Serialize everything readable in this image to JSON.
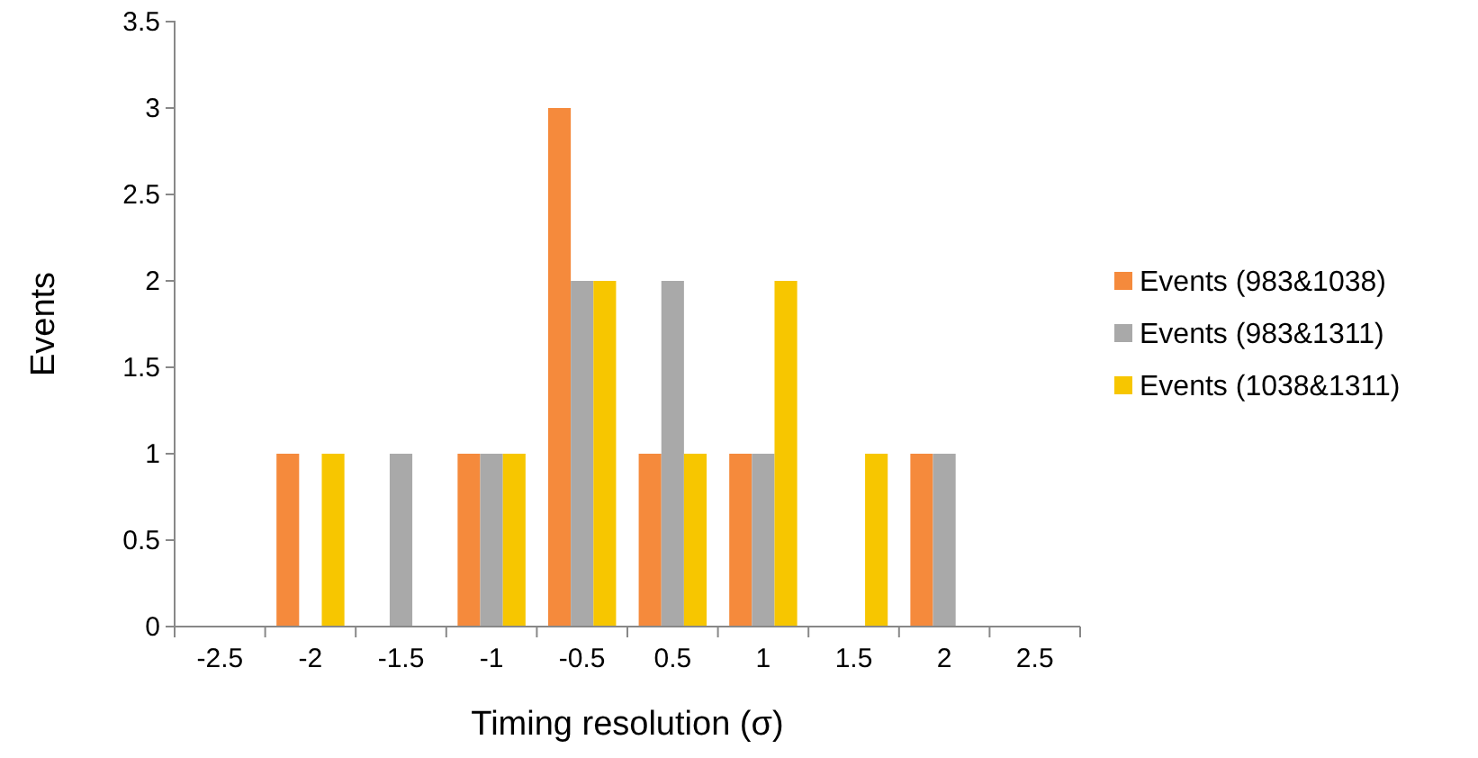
{
  "chart_data": {
    "type": "bar",
    "xlabel": "Timing resolution (σ)",
    "ylabel": "Events",
    "categories": [
      "-2.5",
      "-2",
      "-1.5",
      "-1",
      "-0.5",
      "0.5",
      "1",
      "1.5",
      "2",
      "2.5"
    ],
    "series": [
      {
        "name": "Events (983&1038)",
        "color": "#f58a3c",
        "values": [
          0,
          1,
          0,
          1,
          3,
          1,
          1,
          0,
          1,
          0
        ]
      },
      {
        "name": "Events (983&1311)",
        "color": "#a9a9a9",
        "values": [
          0,
          0,
          1,
          1,
          2,
          2,
          1,
          0,
          1,
          0
        ]
      },
      {
        "name": "Events (1038&1311)",
        "color": "#f7c600",
        "values": [
          0,
          1,
          0,
          1,
          2,
          1,
          2,
          1,
          0,
          0
        ]
      }
    ],
    "ylim": [
      0,
      3.5
    ],
    "yticks": [
      {
        "value": 0,
        "label": "0"
      },
      {
        "value": 0.5,
        "label": "0.5"
      },
      {
        "value": 1,
        "label": "1"
      },
      {
        "value": 1.5,
        "label": "1.5"
      },
      {
        "value": 2,
        "label": "2"
      },
      {
        "value": 2.5,
        "label": "2.5"
      },
      {
        "value": 3,
        "label": "3"
      },
      {
        "value": 3.5,
        "label": "3.5"
      }
    ],
    "grid": false,
    "legend": "right"
  }
}
